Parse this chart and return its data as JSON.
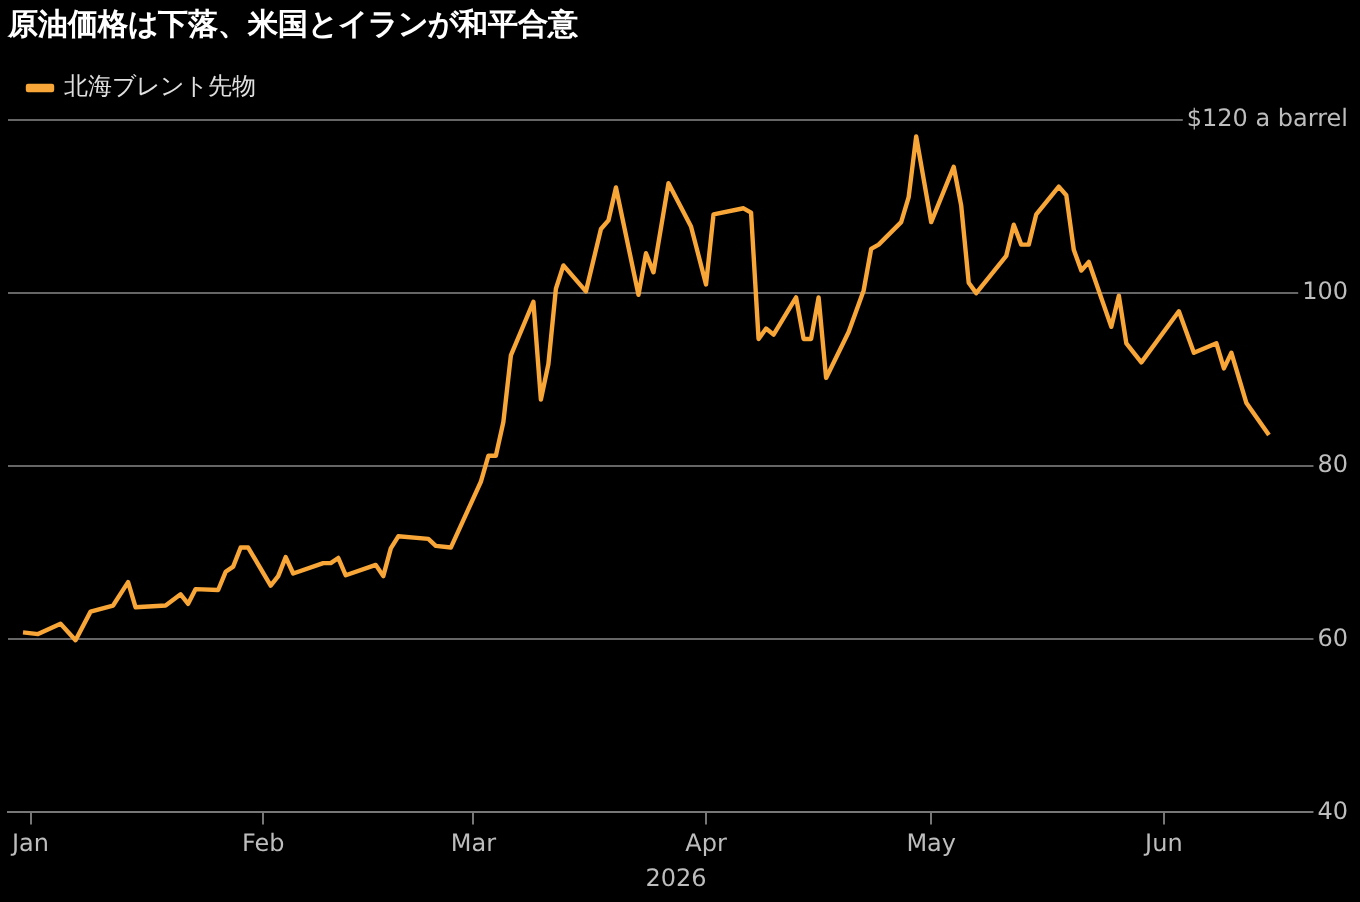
{
  "chart_data": {
    "type": "line",
    "title": "原油価格は下落、米国とイランが和平合意",
    "xlabel": "2026",
    "x": [
      "2025-12-31",
      "2026-01-02",
      "2026-01-05",
      "2026-01-07",
      "2026-01-09",
      "2026-01-12",
      "2026-01-14",
      "2026-01-15",
      "2026-01-19",
      "2026-01-21",
      "2026-01-22",
      "2026-01-23",
      "2026-01-26",
      "2026-01-27",
      "2026-01-28",
      "2026-01-29",
      "2026-01-30",
      "2026-02-02",
      "2026-02-03",
      "2026-02-04",
      "2026-02-05",
      "2026-02-09",
      "2026-02-10",
      "2026-02-11",
      "2026-02-12",
      "2026-02-16",
      "2026-02-17",
      "2026-02-18",
      "2026-02-19",
      "2026-02-23",
      "2026-02-24",
      "2026-02-26",
      "2026-03-02",
      "2026-03-03",
      "2026-03-04",
      "2026-03-05",
      "2026-03-06",
      "2026-03-09",
      "2026-03-10",
      "2026-03-11",
      "2026-03-12",
      "2026-03-13",
      "2026-03-16",
      "2026-03-18",
      "2026-03-19",
      "2026-03-20",
      "2026-03-23",
      "2026-03-24",
      "2026-03-25",
      "2026-03-27",
      "2026-03-30",
      "2026-04-01",
      "2026-04-02",
      "2026-04-06",
      "2026-04-07",
      "2026-04-08",
      "2026-04-09",
      "2026-04-10",
      "2026-04-13",
      "2026-04-14",
      "2026-04-15",
      "2026-04-16",
      "2026-04-17",
      "2026-04-20",
      "2026-04-22",
      "2026-04-23",
      "2026-04-24",
      "2026-04-27",
      "2026-04-28",
      "2026-04-29",
      "2026-05-01",
      "2026-05-04",
      "2026-05-05",
      "2026-05-06",
      "2026-05-07",
      "2026-05-11",
      "2026-05-12",
      "2026-05-13",
      "2026-05-14",
      "2026-05-15",
      "2026-05-18",
      "2026-05-19",
      "2026-05-20",
      "2026-05-21",
      "2026-05-22",
      "2026-05-25",
      "2026-05-26",
      "2026-05-27",
      "2026-05-29",
      "2026-06-03",
      "2026-06-05",
      "2026-06-08",
      "2026-06-09",
      "2026-06-10",
      "2026-06-12",
      "2026-06-15"
    ],
    "series": [
      {
        "name": "北海ブレント先物",
        "color": "#f7a637",
        "values": [
          60.8,
          60.6,
          61.8,
          59.9,
          63.2,
          63.9,
          66.6,
          63.7,
          63.9,
          65.2,
          64.1,
          65.8,
          65.7,
          67.8,
          68.4,
          70.6,
          70.6,
          66.2,
          67.3,
          69.5,
          67.6,
          68.8,
          68.8,
          69.4,
          67.4,
          68.6,
          67.3,
          70.5,
          71.9,
          71.6,
          70.8,
          70.6,
          78.2,
          81.2,
          81.2,
          85.1,
          92.8,
          99.0,
          87.7,
          91.8,
          100.5,
          103.2,
          100.2,
          107.4,
          108.4,
          112.2,
          99.8,
          104.6,
          102.4,
          112.7,
          107.7,
          101.0,
          109.1,
          109.8,
          109.3,
          94.7,
          95.9,
          95.2,
          99.5,
          94.7,
          94.7,
          99.5,
          90.2,
          95.5,
          100.3,
          105.1,
          105.6,
          108.2,
          111.1,
          118.1,
          108.2,
          114.6,
          110.1,
          101.2,
          100.0,
          104.3,
          107.9,
          105.6,
          105.6,
          109.1,
          112.3,
          111.3,
          105.0,
          102.6,
          103.6,
          96.1,
          99.7,
          94.2,
          92.0,
          97.9,
          93.1,
          94.2,
          91.3,
          93.1,
          87.3,
          83.6
        ]
      }
    ],
    "xlim": [
      "2025-12-29",
      "2026-06-25"
    ],
    "xticks": [
      {
        "value": "2026-01-01",
        "label": "Jan"
      },
      {
        "value": "2026-02-01",
        "label": "Feb"
      },
      {
        "value": "2026-03-01",
        "label": "Mar"
      },
      {
        "value": "2026-04-01",
        "label": "Apr"
      },
      {
        "value": "2026-05-01",
        "label": "May"
      },
      {
        "value": "2026-06-01",
        "label": "Jun"
      }
    ],
    "ylim": [
      40,
      120
    ],
    "yticks": [
      40,
      60,
      80,
      100,
      {
        "value": 120,
        "label": "$120 a barrel"
      }
    ],
    "grid": "y",
    "legend": "top left",
    "marker": "none",
    "line_style": "solid"
  }
}
